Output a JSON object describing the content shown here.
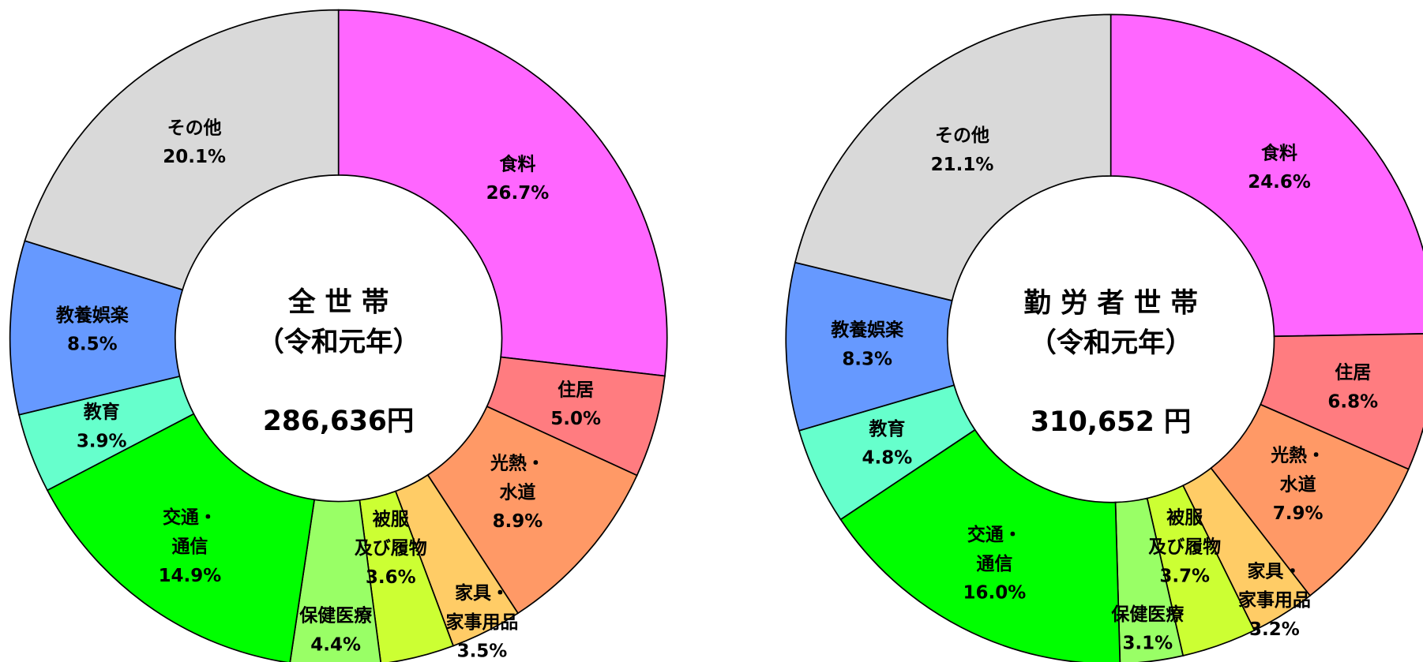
{
  "chart_data": [
    {
      "type": "pie",
      "donut": true,
      "center_title": [
        "全 世 帯",
        "（令和元年）"
      ],
      "center_value": "286,636円",
      "categories": [
        [
          "食料"
        ],
        [
          "住居"
        ],
        [
          "光熱・",
          "水道"
        ],
        [
          "家具・",
          "家事用品"
        ],
        [
          "被服",
          "及び履物"
        ],
        [
          "保健医療"
        ],
        [
          "交通・",
          "通信"
        ],
        [
          "教育"
        ],
        [
          "教養娯楽"
        ],
        [
          "その他"
        ]
      ],
      "values": [
        26.7,
        5.0,
        8.9,
        3.5,
        3.6,
        4.4,
        14.9,
        3.9,
        8.5,
        20.1
      ],
      "value_labels": [
        "26.7%",
        "5.0%",
        "8.9%",
        "3.5%",
        "3.6%",
        "4.4%",
        "14.9%",
        "3.9%",
        "8.5%",
        "20.1%"
      ],
      "colors": [
        "#ff66ff",
        "#ff7c80",
        "#ff9966",
        "#ffcc66",
        "#ccff33",
        "#99ff66",
        "#00ff00",
        "#66ffcc",
        "#6699ff",
        "#d9d9d9"
      ]
    },
    {
      "type": "pie",
      "donut": true,
      "center_title": [
        "勤 労 者 世 帯",
        "（令和元年）"
      ],
      "center_value": "310,652 円",
      "categories": [
        [
          "食料"
        ],
        [
          "住居"
        ],
        [
          "光熱・",
          "水道"
        ],
        [
          "家具・",
          "家事用品"
        ],
        [
          "被服",
          "及び履物"
        ],
        [
          "保健医療"
        ],
        [
          "交通・",
          "通信"
        ],
        [
          "教育"
        ],
        [
          "教養娯楽"
        ],
        [
          "その他"
        ]
      ],
      "values": [
        24.6,
        6.8,
        7.9,
        3.2,
        3.7,
        3.1,
        16.0,
        4.8,
        8.3,
        21.1
      ],
      "value_labels": [
        "24.6%",
        "6.8%",
        "7.9%",
        "3.2%",
        "3.7%",
        "3.1%",
        "16.0%",
        "4.8%",
        "8.3%",
        "21.1%"
      ],
      "colors": [
        "#ff66ff",
        "#ff7c80",
        "#ff9966",
        "#ffcc66",
        "#ccff33",
        "#99ff66",
        "#00ff00",
        "#66ffcc",
        "#6699ff",
        "#d9d9d9"
      ]
    }
  ]
}
